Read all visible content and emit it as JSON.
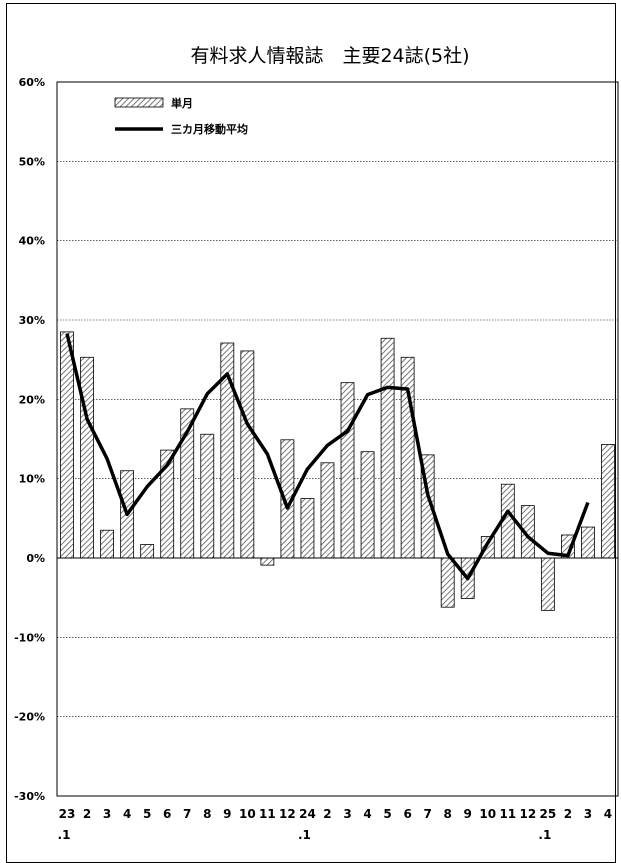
{
  "chart_data": {
    "type": "bar",
    "title": "有料求人情報誌　主要24誌(5社)",
    "xlabel": "",
    "ylabel": "",
    "ylim": [
      -30,
      60
    ],
    "y_ticks": [
      "60%",
      "50%",
      "40%",
      "30%",
      "20%",
      "10%",
      "0%",
      "-10%",
      "-20%",
      "-30%"
    ],
    "y_tick_values": [
      60,
      50,
      40,
      30,
      20,
      10,
      0,
      -10,
      -20,
      -30
    ],
    "grid": true,
    "legend_position": "top-left",
    "categories": [
      "23",
      "2",
      "3",
      "4",
      "5",
      "6",
      "7",
      "8",
      "9",
      "10",
      "11",
      "12",
      "24",
      "2",
      "3",
      "4",
      "5",
      "6",
      "7",
      "8",
      "9",
      "10",
      "11",
      "12",
      "25",
      "2",
      "3",
      "4"
    ],
    "category_sublabels": [
      ".1",
      "",
      "",
      "",
      "",
      "",
      "",
      "",
      "",
      "",
      "",
      "",
      ".1",
      "",
      "",
      "",
      "",
      "",
      "",
      "",
      "",
      "",
      "",
      "",
      ".1",
      "",
      "",
      ""
    ],
    "series": [
      {
        "name": "単月",
        "kind": "bar",
        "values": [
          28.5,
          25.3,
          3.5,
          11.0,
          1.7,
          13.6,
          18.8,
          15.6,
          27.1,
          26.1,
          -0.9,
          14.9,
          7.5,
          12.0,
          22.1,
          13.4,
          27.7,
          25.3,
          13.0,
          -6.2,
          -5.1,
          2.7,
          9.3,
          6.6,
          -6.6,
          2.9,
          3.9,
          14.3
        ]
      },
      {
        "name": "三カ月移動平均",
        "kind": "line",
        "values": [
          28.3,
          17.5,
          12.5,
          5.5,
          9.0,
          11.7,
          15.9,
          20.7,
          23.2,
          16.9,
          13.1,
          6.3,
          11.2,
          14.2,
          16.0,
          20.6,
          21.5,
          21.3,
          8.0,
          0.5,
          -2.6,
          1.9,
          5.9,
          2.7,
          0.6,
          0.3,
          7.0,
          null
        ]
      }
    ]
  }
}
